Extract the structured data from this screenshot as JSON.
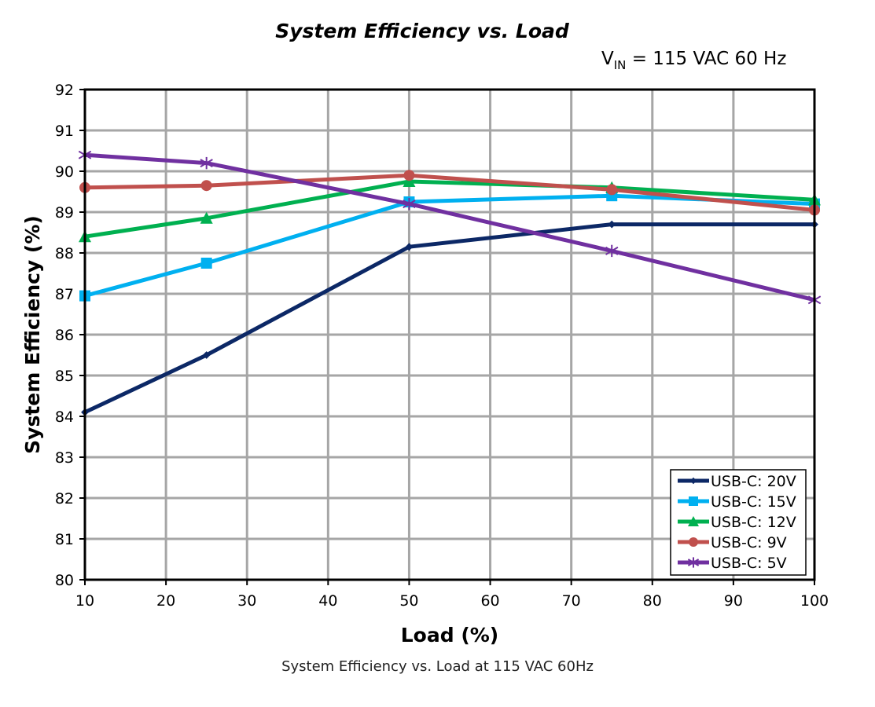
{
  "chart_data": {
    "type": "line",
    "title": "System Efficiency vs. Load",
    "annotation": {
      "main": "V",
      "subscript": "IN",
      "rest": " = 115 VAC 60 Hz"
    },
    "xlabel": "Load (%)",
    "ylabel": "System Efficiency (%)",
    "caption": "System Efficiency vs. Load at 115 VAC 60Hz",
    "xlim": [
      10,
      100
    ],
    "ylim": [
      80,
      92
    ],
    "xticks": [
      "10",
      "20",
      "30",
      "40",
      "50",
      "60",
      "70",
      "80",
      "90",
      "100"
    ],
    "yticks": [
      "80",
      "81",
      "82",
      "83",
      "84",
      "85",
      "86",
      "87",
      "88",
      "89",
      "90",
      "91",
      "92"
    ],
    "grid": true,
    "legend_position": "bottom-right",
    "x": [
      10,
      25,
      50,
      75,
      100
    ],
    "series": [
      {
        "name": "USB-C: 20V",
        "color": "#0c2866",
        "marker": "diamond",
        "values": [
          84.1,
          85.5,
          88.15,
          88.7,
          88.7
        ]
      },
      {
        "name": "USB-C: 15V",
        "color": "#00b0f0",
        "marker": "square",
        "values": [
          86.95,
          87.75,
          89.25,
          89.4,
          89.2
        ]
      },
      {
        "name": "USB-C: 12V",
        "color": "#00b050",
        "marker": "triangle",
        "values": [
          88.4,
          88.85,
          89.75,
          89.6,
          89.3
        ]
      },
      {
        "name": "USB-C: 9V",
        "color": "#c0504d",
        "marker": "circle",
        "values": [
          89.6,
          89.65,
          89.9,
          89.55,
          89.05
        ]
      },
      {
        "name": "USB-C: 5V",
        "color": "#7030a0",
        "marker": "asterisk",
        "values": [
          90.4,
          90.2,
          89.2,
          88.05,
          86.85
        ]
      }
    ]
  }
}
